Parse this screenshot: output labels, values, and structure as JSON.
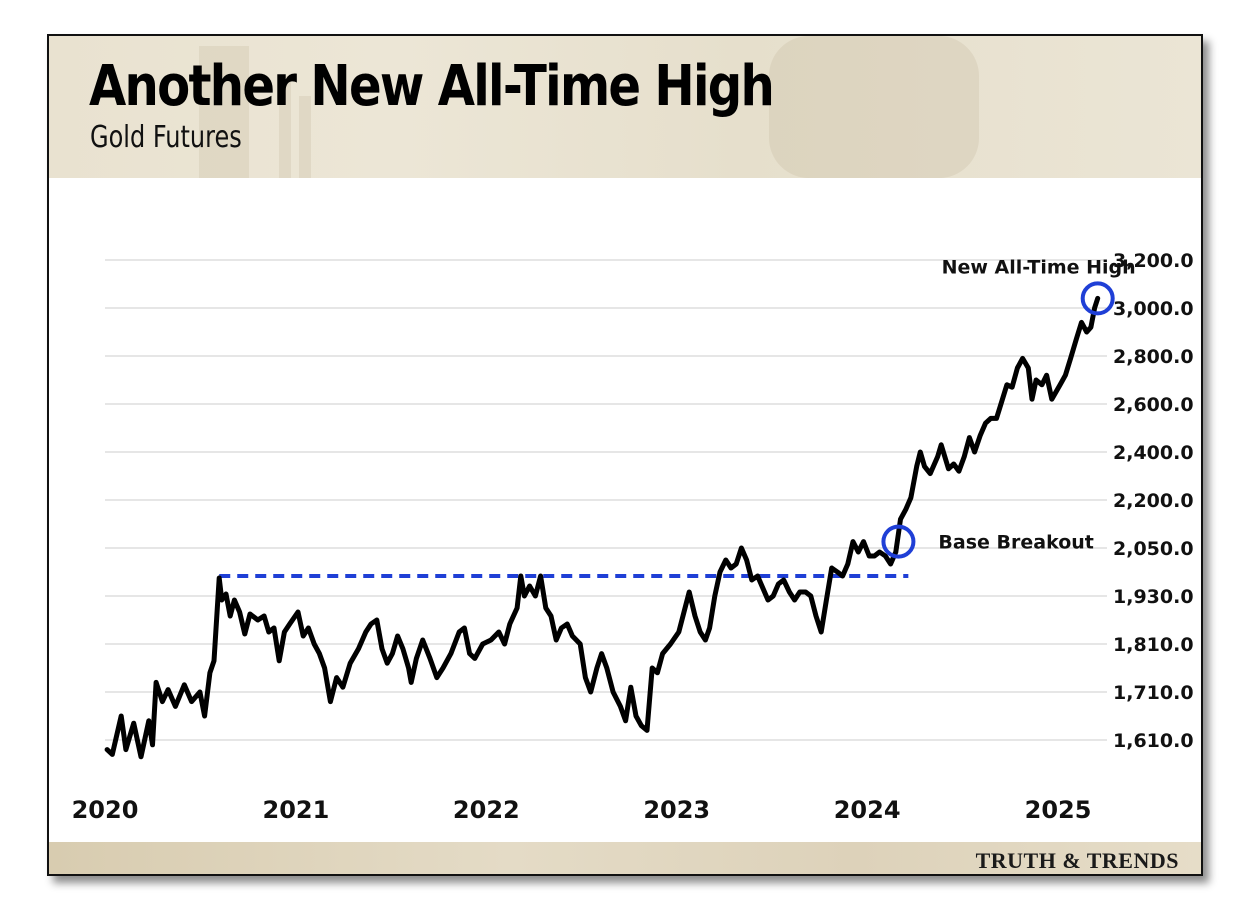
{
  "brand": "TRUTH & TRENDS",
  "colors": {
    "line": "#000000",
    "highlight": "#1f3fd6",
    "grid": "#cccccc",
    "header_bg": "#ebe5d5"
  },
  "chart_data": {
    "type": "line",
    "title": "Another New All-Time High",
    "subtitle": "Gold Futures",
    "xlabel": "",
    "ylabel": "",
    "y_ticks": [
      1610,
      1710,
      1810,
      1930,
      2050,
      2200,
      2400,
      2600,
      2800,
      3000,
      3200
    ],
    "y_tick_labels": [
      "1,610.0",
      "1,710.0",
      "1,810.0",
      "1,930.0",
      "2,050.0",
      "2,200.0",
      "2,400.0",
      "2,600.0",
      "2,800.0",
      "3,000.0",
      "3,200.0"
    ],
    "x_ticks": [
      "2020",
      "2021",
      "2022",
      "2023",
      "2024",
      "2025"
    ],
    "xlim": [
      "2020-01-01",
      "2025-04-01"
    ],
    "grid": true,
    "series": [
      {
        "points": [
          [
            "2020-01-05",
            1590
          ],
          [
            "2020-01-15",
            1580
          ],
          [
            "2020-02-01",
            1660
          ],
          [
            "2020-02-10",
            1590
          ],
          [
            "2020-02-25",
            1645
          ],
          [
            "2020-03-10",
            1575
          ],
          [
            "2020-03-25",
            1650
          ],
          [
            "2020-04-01",
            1600
          ],
          [
            "2020-04-08",
            1730
          ],
          [
            "2020-04-20",
            1690
          ],
          [
            "2020-05-01",
            1715
          ],
          [
            "2020-05-15",
            1680
          ],
          [
            "2020-06-01",
            1725
          ],
          [
            "2020-06-15",
            1690
          ],
          [
            "2020-07-01",
            1710
          ],
          [
            "2020-07-10",
            1660
          ],
          [
            "2020-07-20",
            1750
          ],
          [
            "2020-07-28",
            1775
          ],
          [
            "2020-08-07",
            1975
          ],
          [
            "2020-08-12",
            1920
          ],
          [
            "2020-08-20",
            1935
          ],
          [
            "2020-08-28",
            1880
          ],
          [
            "2020-09-05",
            1920
          ],
          [
            "2020-09-15",
            1890
          ],
          [
            "2020-09-25",
            1835
          ],
          [
            "2020-10-05",
            1885
          ],
          [
            "2020-10-20",
            1870
          ],
          [
            "2020-11-01",
            1880
          ],
          [
            "2020-11-10",
            1840
          ],
          [
            "2020-11-20",
            1850
          ],
          [
            "2020-11-30",
            1775
          ],
          [
            "2020-12-10",
            1840
          ],
          [
            "2020-12-20",
            1860
          ],
          [
            "2021-01-05",
            1890
          ],
          [
            "2021-01-15",
            1830
          ],
          [
            "2021-01-25",
            1850
          ],
          [
            "2021-02-05",
            1810
          ],
          [
            "2021-02-15",
            1790
          ],
          [
            "2021-02-25",
            1760
          ],
          [
            "2021-03-08",
            1690
          ],
          [
            "2021-03-20",
            1740
          ],
          [
            "2021-04-01",
            1720
          ],
          [
            "2021-04-15",
            1770
          ],
          [
            "2021-05-01",
            1800
          ],
          [
            "2021-05-15",
            1840
          ],
          [
            "2021-05-25",
            1860
          ],
          [
            "2021-06-05",
            1870
          ],
          [
            "2021-06-15",
            1800
          ],
          [
            "2021-06-25",
            1770
          ],
          [
            "2021-07-05",
            1790
          ],
          [
            "2021-07-15",
            1830
          ],
          [
            "2021-07-25",
            1800
          ],
          [
            "2021-08-05",
            1760
          ],
          [
            "2021-08-10",
            1730
          ],
          [
            "2021-08-20",
            1780
          ],
          [
            "2021-09-01",
            1820
          ],
          [
            "2021-09-15",
            1780
          ],
          [
            "2021-09-28",
            1740
          ],
          [
            "2021-10-10",
            1760
          ],
          [
            "2021-10-25",
            1790
          ],
          [
            "2021-11-10",
            1840
          ],
          [
            "2021-11-20",
            1850
          ],
          [
            "2021-11-30",
            1790
          ],
          [
            "2021-12-10",
            1780
          ],
          [
            "2021-12-25",
            1810
          ],
          [
            "2022-01-10",
            1820
          ],
          [
            "2022-01-25",
            1840
          ],
          [
            "2022-02-05",
            1810
          ],
          [
            "2022-02-15",
            1860
          ],
          [
            "2022-03-01",
            1900
          ],
          [
            "2022-03-08",
            1980
          ],
          [
            "2022-03-15",
            1930
          ],
          [
            "2022-03-25",
            1955
          ],
          [
            "2022-04-05",
            1930
          ],
          [
            "2022-04-15",
            1980
          ],
          [
            "2022-04-25",
            1900
          ],
          [
            "2022-05-05",
            1880
          ],
          [
            "2022-05-15",
            1820
          ],
          [
            "2022-05-25",
            1850
          ],
          [
            "2022-06-05",
            1860
          ],
          [
            "2022-06-15",
            1830
          ],
          [
            "2022-06-30",
            1810
          ],
          [
            "2022-07-10",
            1740
          ],
          [
            "2022-07-20",
            1710
          ],
          [
            "2022-08-01",
            1760
          ],
          [
            "2022-08-10",
            1790
          ],
          [
            "2022-08-20",
            1760
          ],
          [
            "2022-09-01",
            1710
          ],
          [
            "2022-09-15",
            1680
          ],
          [
            "2022-09-25",
            1650
          ],
          [
            "2022-10-05",
            1720
          ],
          [
            "2022-10-15",
            1660
          ],
          [
            "2022-10-25",
            1640
          ],
          [
            "2022-11-05",
            1630
          ],
          [
            "2022-11-15",
            1760
          ],
          [
            "2022-11-25",
            1750
          ],
          [
            "2022-12-05",
            1790
          ],
          [
            "2022-12-20",
            1810
          ],
          [
            "2023-01-05",
            1840
          ],
          [
            "2023-01-15",
            1890
          ],
          [
            "2023-01-25",
            1940
          ],
          [
            "2023-02-05",
            1880
          ],
          [
            "2023-02-15",
            1840
          ],
          [
            "2023-02-25",
            1820
          ],
          [
            "2023-03-05",
            1850
          ],
          [
            "2023-03-15",
            1930
          ],
          [
            "2023-03-25",
            1990
          ],
          [
            "2023-04-05",
            2020
          ],
          [
            "2023-04-15",
            2000
          ],
          [
            "2023-04-25",
            2010
          ],
          [
            "2023-05-05",
            2050
          ],
          [
            "2023-05-15",
            2020
          ],
          [
            "2023-05-25",
            1970
          ],
          [
            "2023-06-05",
            1980
          ],
          [
            "2023-06-15",
            1950
          ],
          [
            "2023-06-25",
            1920
          ],
          [
            "2023-07-05",
            1930
          ],
          [
            "2023-07-15",
            1960
          ],
          [
            "2023-07-25",
            1970
          ],
          [
            "2023-08-05",
            1940
          ],
          [
            "2023-08-15",
            1920
          ],
          [
            "2023-08-25",
            1940
          ],
          [
            "2023-09-05",
            1940
          ],
          [
            "2023-09-15",
            1930
          ],
          [
            "2023-09-25",
            1880
          ],
          [
            "2023-10-05",
            1840
          ],
          [
            "2023-10-15",
            1920
          ],
          [
            "2023-10-25",
            2000
          ],
          [
            "2023-11-05",
            1990
          ],
          [
            "2023-11-15",
            1980
          ],
          [
            "2023-11-25",
            2010
          ],
          [
            "2023-12-05",
            2070
          ],
          [
            "2023-12-15",
            2040
          ],
          [
            "2023-12-25",
            2070
          ],
          [
            "2024-01-05",
            2030
          ],
          [
            "2024-01-15",
            2030
          ],
          [
            "2024-01-25",
            2040
          ],
          [
            "2024-02-05",
            2030
          ],
          [
            "2024-02-15",
            2010
          ],
          [
            "2024-02-25",
            2040
          ],
          [
            "2024-03-05",
            2140
          ],
          [
            "2024-03-15",
            2170
          ],
          [
            "2024-03-25",
            2210
          ],
          [
            "2024-04-05",
            2340
          ],
          [
            "2024-04-12",
            2400
          ],
          [
            "2024-04-20",
            2340
          ],
          [
            "2024-05-01",
            2310
          ],
          [
            "2024-05-15",
            2380
          ],
          [
            "2024-05-22",
            2430
          ],
          [
            "2024-06-05",
            2330
          ],
          [
            "2024-06-15",
            2350
          ],
          [
            "2024-06-25",
            2320
          ],
          [
            "2024-07-05",
            2380
          ],
          [
            "2024-07-15",
            2460
          ],
          [
            "2024-07-25",
            2400
          ],
          [
            "2024-08-05",
            2470
          ],
          [
            "2024-08-15",
            2520
          ],
          [
            "2024-08-25",
            2540
          ],
          [
            "2024-09-05",
            2540
          ],
          [
            "2024-09-15",
            2610
          ],
          [
            "2024-09-25",
            2680
          ],
          [
            "2024-10-05",
            2670
          ],
          [
            "2024-10-15",
            2750
          ],
          [
            "2024-10-25",
            2790
          ],
          [
            "2024-11-05",
            2750
          ],
          [
            "2024-11-12",
            2620
          ],
          [
            "2024-11-20",
            2700
          ],
          [
            "2024-12-01",
            2680
          ],
          [
            "2024-12-10",
            2720
          ],
          [
            "2024-12-20",
            2620
          ],
          [
            "2025-01-05",
            2680
          ],
          [
            "2025-01-15",
            2720
          ],
          [
            "2025-01-25",
            2790
          ],
          [
            "2025-02-05",
            2870
          ],
          [
            "2025-02-15",
            2940
          ],
          [
            "2025-02-25",
            2900
          ],
          [
            "2025-03-05",
            2920
          ],
          [
            "2025-03-12",
            3000
          ],
          [
            "2025-03-18",
            3040
          ]
        ]
      }
    ],
    "reference_line": {
      "value": 1980,
      "style": "dashed",
      "from": "2020-08-07",
      "to": "2024-03-20"
    },
    "annotations": [
      {
        "text": "New All-Time High",
        "x": "2025-03-18",
        "y": 3040
      },
      {
        "text": "Base Breakout",
        "x": "2024-03-01",
        "y": 2070
      }
    ]
  }
}
